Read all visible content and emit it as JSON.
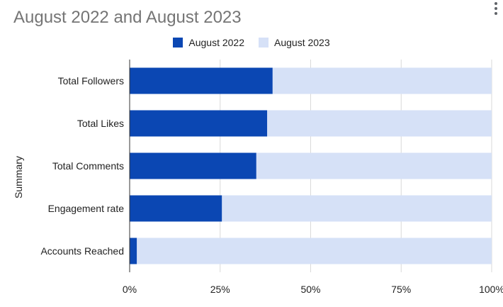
{
  "chart_data": {
    "type": "bar",
    "orientation": "horizontal",
    "stacked": "100%",
    "title": "August 2022 and August 2023",
    "ylabel": "Summary",
    "xlabel": "",
    "xlim": [
      0,
      100
    ],
    "grid": true,
    "legend_position": "top",
    "categories": [
      "Total Followers",
      "Total Likes",
      "Total Comments",
      "Engagement rate",
      "Accounts Reached"
    ],
    "series": [
      {
        "name": "August 2022",
        "color": "#0b47b3",
        "values": [
          39.5,
          38,
          35,
          25.5,
          2
        ]
      },
      {
        "name": "August 2023",
        "color": "#d6e1f7",
        "values": [
          60.5,
          62,
          65,
          74.5,
          98
        ]
      }
    ],
    "x_ticks": [
      0,
      25,
      50,
      75,
      100
    ],
    "x_tick_labels": [
      "0%",
      "25%",
      "50%",
      "75%",
      "100%"
    ]
  },
  "ui": {
    "menu_icon": "more-vert-icon"
  }
}
